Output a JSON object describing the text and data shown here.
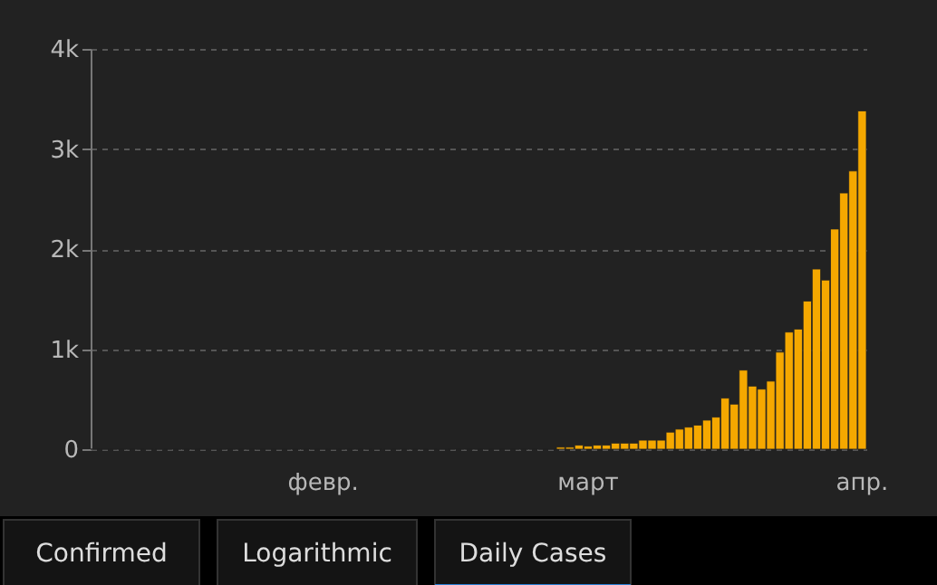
{
  "chart_data": {
    "type": "bar",
    "categories": [
      null,
      null,
      null,
      null,
      null,
      null,
      null,
      null,
      null,
      null,
      null,
      null,
      null,
      null,
      null,
      null,
      null,
      null,
      null,
      null,
      null,
      null,
      null,
      null,
      null,
      "февр.",
      null,
      null,
      null,
      null,
      null,
      null,
      null,
      null,
      null,
      null,
      null,
      null,
      null,
      null,
      null,
      null,
      null,
      null,
      null,
      null,
      null,
      null,
      null,
      null,
      null,
      null,
      null,
      null,
      "март",
      null,
      null,
      null,
      null,
      null,
      null,
      null,
      null,
      null,
      null,
      null,
      null,
      null,
      null,
      null,
      null,
      null,
      null,
      null,
      null,
      null,
      null,
      null,
      null,
      null,
      null,
      null,
      null,
      null,
      "апр."
    ],
    "values": [
      0,
      0,
      0,
      0,
      0,
      0,
      0,
      0,
      0,
      0,
      0,
      0,
      0,
      0,
      0,
      0,
      0,
      0,
      0,
      0,
      0,
      0,
      0,
      0,
      0,
      0,
      0,
      0,
      0,
      0,
      0,
      0,
      0,
      0,
      0,
      0,
      0,
      0,
      0,
      0,
      0,
      0,
      0,
      0,
      0,
      0,
      0,
      0,
      0,
      0,
      0,
      20,
      20,
      40,
      30,
      40,
      40,
      60,
      60,
      60,
      90,
      90,
      90,
      170,
      200,
      220,
      240,
      290,
      320,
      510,
      450,
      790,
      630,
      600,
      680,
      970,
      1170,
      1200,
      1480,
      1800,
      1690,
      2200,
      2560,
      2780,
      3380
    ],
    "color": "#f5a800",
    "ylim": [
      0,
      4000
    ],
    "yticks": [
      0,
      {
        "value": 1000,
        "label": "1k"
      },
      {
        "value": 2000,
        "label": "2k"
      },
      {
        "value": 3000,
        "label": "3k"
      },
      {
        "value": 4000,
        "label": "4k"
      }
    ],
    "grid": "y",
    "annotations": [
      "Confirmed",
      "Logarithmic",
      "Daily Cases"
    ]
  }
}
